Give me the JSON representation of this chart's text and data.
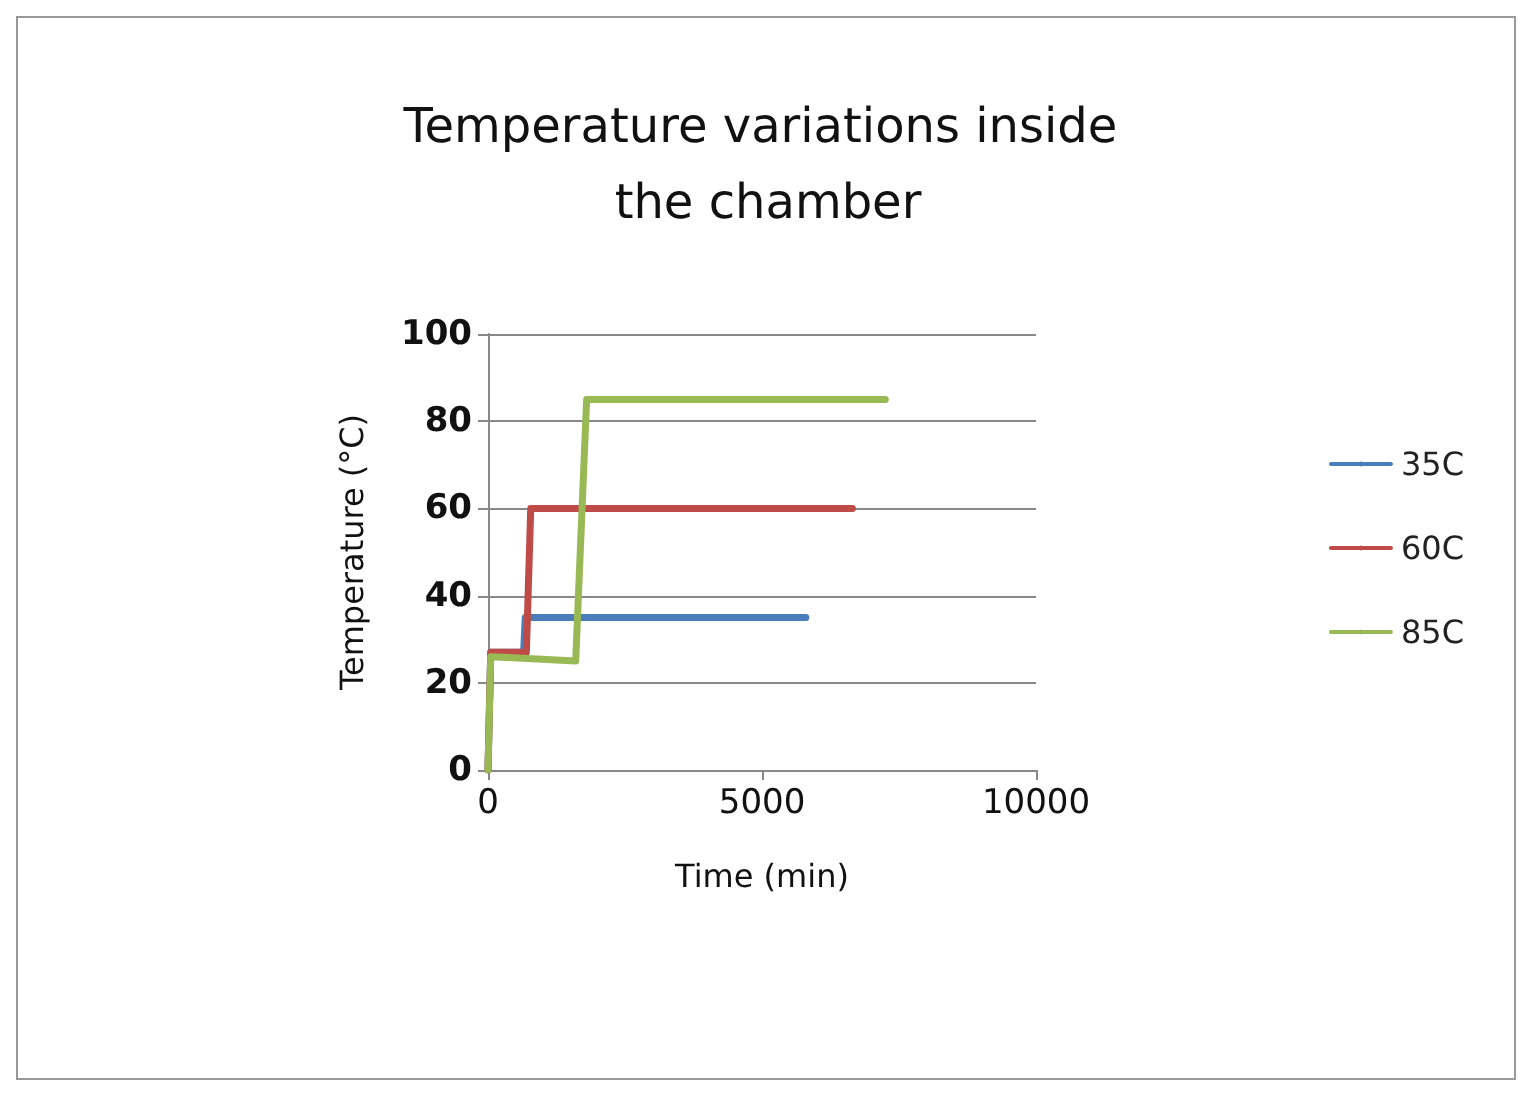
{
  "chart_data": {
    "type": "line",
    "title": "Temperature variations inside the chamber",
    "xlabel": "Time (min)",
    "ylabel": "Temperature (°C)",
    "xlim": [
      0,
      10000
    ],
    "xticks": [
      0,
      5000,
      10000
    ],
    "ylim": [
      0,
      100
    ],
    "yticks": [
      0,
      20,
      40,
      60,
      80,
      100
    ],
    "grid": "y",
    "legend": "right",
    "marker": "none",
    "line_style": "solid",
    "series": [
      {
        "name": "35C",
        "color": "#4a7ebb",
        "x": [
          0,
          50,
          650,
          680,
          5800
        ],
        "values": [
          0,
          27,
          27,
          35,
          35
        ]
      },
      {
        "name": "60C",
        "color": "#be4b48",
        "x": [
          0,
          50,
          700,
          780,
          6650
        ],
        "values": [
          0,
          27,
          27,
          60,
          60
        ]
      },
      {
        "name": "85C",
        "color": "#98b954",
        "x": [
          0,
          50,
          1600,
          1800,
          7250
        ],
        "values": [
          0,
          26,
          25,
          85,
          85
        ]
      }
    ]
  }
}
